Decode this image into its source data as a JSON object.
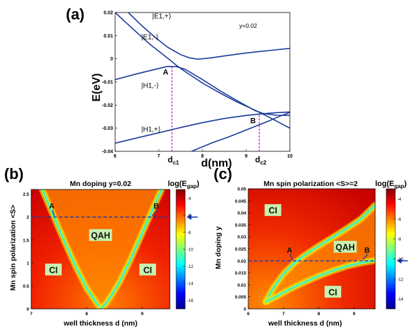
{
  "chart_data": [
    {
      "panel": "(a)",
      "type": "line",
      "title": "",
      "annotation": "y=0.02",
      "xlabel": "d(nm)",
      "ylabel": "E(eV)",
      "xlim": [
        6,
        10
      ],
      "ylim": [
        -0.04,
        0.02
      ],
      "xticks": [
        6,
        7,
        8,
        9,
        10
      ],
      "yticks": [
        0.02,
        0.01,
        0,
        -0.01,
        -0.02,
        -0.03,
        -0.04
      ],
      "xtick_labels": [
        "6",
        "7",
        "8",
        "9",
        "10"
      ],
      "ytick_labels": [
        "0.02",
        "0.01",
        "0",
        "-0.01",
        "-0.02",
        "-0.03",
        "-0.04"
      ],
      "grid": false,
      "line_color": "#1a3a9a",
      "series": [
        {
          "name": "|E1,+⟩",
          "x": [
            6.3,
            6.6,
            6.9,
            7.2,
            7.5,
            7.7,
            7.9,
            8.2,
            8.6,
            9.0,
            9.5,
            10.0
          ],
          "y": [
            0.02,
            0.0145,
            0.0095,
            0.005,
            0.0018,
            0.0004,
            -0.0002,
            0.0004,
            0.0015,
            0.0025,
            0.0035,
            0.0045
          ]
        },
        {
          "name": "|E1,-⟩",
          "x": [
            6.0,
            6.4,
            6.8,
            7.1,
            7.3,
            7.4,
            7.6,
            8.0,
            8.4,
            8.8,
            9.2,
            9.6,
            10.0
          ],
          "y": [
            0.02,
            0.013,
            0.0062,
            0.0018,
            -0.0012,
            -0.0028,
            -0.0055,
            -0.0105,
            -0.0148,
            -0.0188,
            -0.0222,
            -0.026,
            -0.03
          ]
        },
        {
          "name": "|H1,-⟩",
          "x": [
            6.0,
            6.5,
            7.0,
            7.2,
            7.4,
            7.6,
            8.0,
            8.4,
            8.8,
            9.2,
            9.4,
            9.7,
            10.0
          ],
          "y": [
            -0.009,
            -0.0065,
            -0.0042,
            -0.0033,
            -0.0034,
            -0.0045,
            -0.009,
            -0.0138,
            -0.0182,
            -0.0224,
            -0.0237,
            -0.0244,
            -0.0245
          ]
        },
        {
          "name": "|H1,+⟩",
          "x": [
            6.0,
            6.5,
            7.0,
            7.5,
            8.0,
            8.5,
            9.0,
            9.4,
            9.7,
            10.0
          ],
          "y": [
            -0.0365,
            -0.0342,
            -0.032,
            -0.0297,
            -0.0276,
            -0.0258,
            -0.0245,
            -0.0237,
            -0.0233,
            -0.023
          ]
        },
        {
          "name": "",
          "x": [
            7.75,
            8.2,
            8.6,
            9.0,
            9.4,
            9.8,
            10.0
          ],
          "y": [
            -0.04,
            -0.0365,
            -0.0338,
            -0.0308,
            -0.0278,
            -0.0246,
            -0.0232
          ]
        }
      ],
      "curve_labels": [
        {
          "text": "|E1,+⟩",
          "x": 6.85,
          "y": 0.0175
        },
        {
          "text": "|E1,-⟩",
          "x": 6.6,
          "y": 0.0085
        },
        {
          "text": "|H1,-⟩",
          "x": 6.6,
          "y": -0.0125
        },
        {
          "text": "|H1,+⟩",
          "x": 6.6,
          "y": -0.0315
        }
      ],
      "points": [
        {
          "label": "A",
          "x": 7.3,
          "y": -0.0033
        },
        {
          "label": "B",
          "x": 9.3,
          "y": -0.0242
        }
      ],
      "vlines": [
        {
          "x": 7.3,
          "label": "d",
          "sub": "c1",
          "color": "#cc00cc"
        },
        {
          "x": 9.3,
          "label": "d",
          "sub": "c2",
          "color": "#cc00cc"
        }
      ]
    },
    {
      "panel": "(b)",
      "type": "heatmap",
      "title": "Mn doping y=0.02",
      "xlabel": "well thickness d (nm)",
      "ylabel": "Mn spin polarization <S>",
      "xlim": [
        7,
        9.5
      ],
      "ylim": [
        0,
        2.6
      ],
      "xticks": [
        7,
        8,
        9
      ],
      "yticks": [
        0,
        0.5,
        1,
        1.5,
        2,
        2.5
      ],
      "xtick_labels": [
        "7",
        "8",
        "9"
      ],
      "ytick_labels": [
        "0",
        "0.5",
        "1",
        "1.5",
        "2",
        "2.5"
      ],
      "colorbar": {
        "label": "log(E",
        "sub": "gap",
        "close": ")",
        "ticks": [
          -4,
          -6,
          -8,
          -10,
          -12,
          -14,
          -16
        ],
        "tick_labels": [
          "-4",
          "-6",
          "-8",
          "-10",
          "-12",
          "-14",
          "-16"
        ],
        "range": [
          -17,
          -3
        ]
      },
      "boundary_curves": [
        {
          "x": [
            7.2,
            7.4,
            7.6,
            7.8,
            8.0,
            8.15,
            8.25
          ],
          "y": [
            2.6,
            2.03,
            1.47,
            0.93,
            0.45,
            0.18,
            0.0
          ]
        },
        {
          "x": [
            9.35,
            9.2,
            9.0,
            8.8,
            8.6,
            8.45,
            8.35,
            8.25
          ],
          "y": [
            2.6,
            2.2,
            1.65,
            1.1,
            0.6,
            0.3,
            0.12,
            0.0
          ]
        }
      ],
      "regions": [
        {
          "text": "QAH",
          "x": 8.25,
          "y": 1.6
        },
        {
          "text": "CI",
          "x": 7.4,
          "y": 0.85
        },
        {
          "text": "CI",
          "x": 9.1,
          "y": 0.85
        }
      ],
      "points": [
        {
          "label": "A",
          "x": 7.42,
          "y": 2.0
        },
        {
          "label": "B",
          "x": 9.18,
          "y": 2.0
        }
      ],
      "hline": {
        "y": 2.0,
        "color": "#1a3ab0"
      }
    },
    {
      "panel": "(c)",
      "type": "heatmap",
      "title": "Mn spin polarization <S>=2",
      "xlabel": "well thickness d (nm)",
      "ylabel": "Mn doping y",
      "xlim": [
        6,
        9.6
      ],
      "ylim": [
        0,
        0.05
      ],
      "xticks": [
        6,
        7,
        8,
        9
      ],
      "yticks": [
        0,
        0.005,
        0.01,
        0.015,
        0.02,
        0.025,
        0.03,
        0.035,
        0.04,
        0.045,
        0.05
      ],
      "xtick_labels": [
        "6",
        "7",
        "8",
        "9"
      ],
      "ytick_labels": [
        "0",
        "0.005",
        "0.01",
        "0.015",
        "0.02",
        "0.025",
        "0.03",
        "0.035",
        "0.04",
        "0.045",
        "0.05"
      ],
      "colorbar": {
        "label": "log(E",
        "sub": "gap",
        "close": ")",
        "ticks": [
          -4,
          -6,
          -8,
          -10,
          -12,
          -14
        ],
        "tick_labels": [
          "-4",
          "-6",
          "-8",
          "-10",
          "-12",
          "-14"
        ],
        "range": [
          -15,
          -3
        ]
      },
      "boundary_curves": [
        {
          "x": [
            6.5,
            6.7,
            7.0,
            7.3,
            7.6,
            8.0,
            8.4,
            8.8,
            9.2,
            9.6
          ],
          "y": [
            0.003,
            0.0085,
            0.0145,
            0.019,
            0.0223,
            0.0262,
            0.0298,
            0.0335,
            0.0375,
            0.0432
          ]
        },
        {
          "x": [
            6.5,
            6.8,
            7.1,
            7.4,
            7.7,
            8.0,
            8.4,
            8.8,
            9.2,
            9.6
          ],
          "y": [
            0.003,
            0.0052,
            0.0076,
            0.0098,
            0.0118,
            0.0137,
            0.0159,
            0.0178,
            0.0192,
            0.0202
          ]
        }
      ],
      "regions": [
        {
          "text": "CI",
          "x": 6.7,
          "y": 0.041
        },
        {
          "text": "QAH",
          "x": 8.75,
          "y": 0.0257
        },
        {
          "text": "CI",
          "x": 8.4,
          "y": 0.007
        }
      ],
      "points": [
        {
          "label": "A",
          "x": 7.25,
          "y": 0.02
        },
        {
          "label": "B",
          "x": 9.25,
          "y": 0.02
        }
      ],
      "hline": {
        "y": 0.02,
        "color": "#1a3ab0"
      }
    }
  ],
  "panel_labels": [
    "(a)",
    "(b)",
    "(c)"
  ]
}
